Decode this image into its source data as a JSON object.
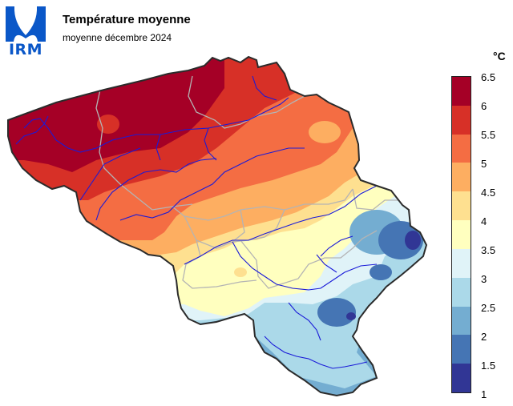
{
  "header": {
    "logo_text": "IRM",
    "title": "Température moyenne",
    "subtitle": "moyenne décembre 2024"
  },
  "legend": {
    "unit": "°C",
    "ticks": [
      "6.5",
      "6",
      "5.5",
      "5",
      "4.5",
      "4",
      "3.5",
      "3",
      "2.5",
      "2",
      "1.5",
      "1"
    ],
    "colors": [
      "#a50026",
      "#d73027",
      "#f46d43",
      "#fdae61",
      "#fee090",
      "#ffffbf",
      "#e0f3f8",
      "#abd9e9",
      "#74add1",
      "#4575b4",
      "#313695"
    ]
  },
  "icons": {
    "logo": "irm-logo-icon"
  }
}
